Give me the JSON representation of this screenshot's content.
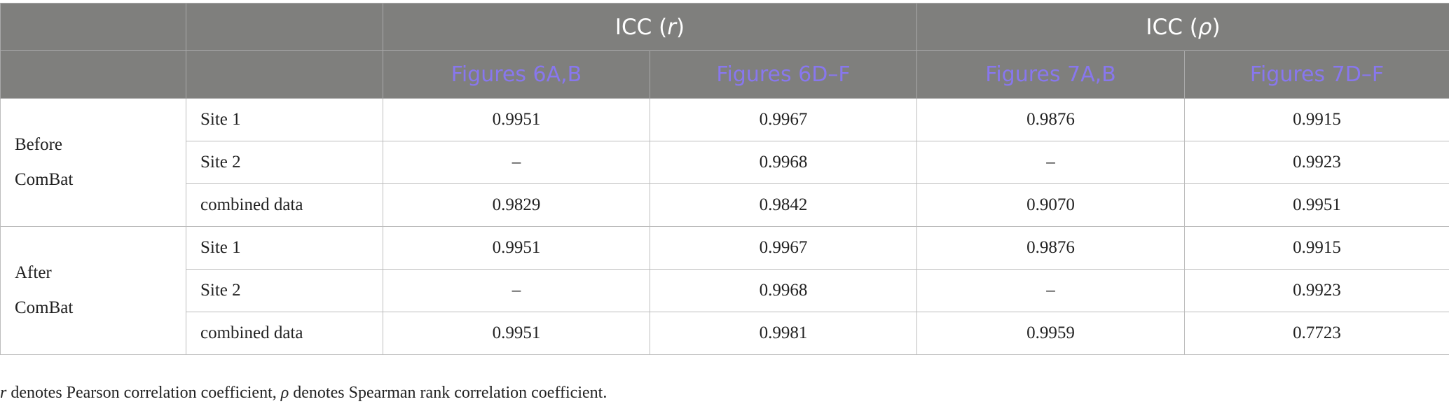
{
  "table": {
    "header": {
      "groups": [
        [
          "ICC (",
          "r",
          ")"
        ],
        [
          "ICC (",
          "ρ",
          ")"
        ]
      ],
      "columns": [
        "Figures 6A,B",
        "Figures 6D–F",
        "Figures 7A,B",
        "Figures 7D–F"
      ]
    },
    "row_groups": [
      {
        "label": "Before ComBat",
        "rows": [
          [
            "Site 1",
            "0.9951",
            "0.9967",
            "0.9876",
            "0.9915"
          ],
          [
            "Site 2",
            "–",
            "0.9968",
            "–",
            "0.9923"
          ],
          [
            "combined data",
            "0.9829",
            "0.9842",
            "0.9070",
            "0.9951"
          ]
        ]
      },
      {
        "label": "After ComBat",
        "rows": [
          [
            "Site 1",
            "0.9951",
            "0.9967",
            "0.9876",
            "0.9915"
          ],
          [
            "Site 2",
            "–",
            "0.9968",
            "–",
            "0.9923"
          ],
          [
            "combined data",
            "0.9951",
            "0.9981",
            "0.9959",
            "0.7723"
          ]
        ]
      }
    ]
  },
  "footnote": [
    "r",
    " denotes Pearson correlation coefficient, ",
    "ρ",
    " denotes Spearman rank correlation coefficient."
  ]
}
